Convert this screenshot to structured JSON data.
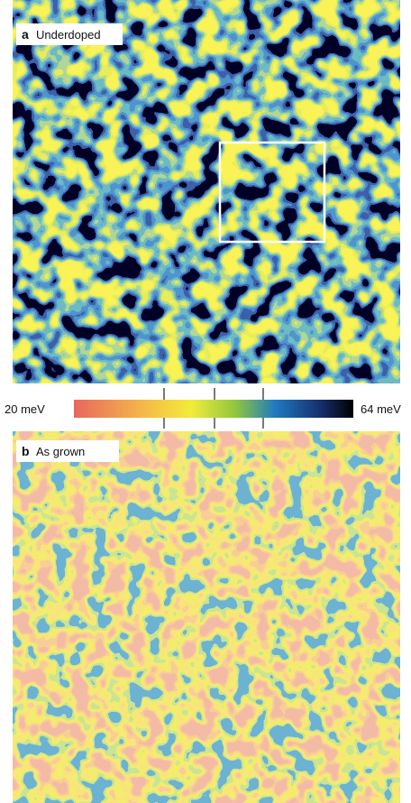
{
  "panels": [
    {
      "letter": "a",
      "label": "Underdoped"
    },
    {
      "letter": "b",
      "label": "As grown"
    }
  ],
  "colorbar": {
    "min_label": "20 meV",
    "max_label": "64 meV"
  }
}
